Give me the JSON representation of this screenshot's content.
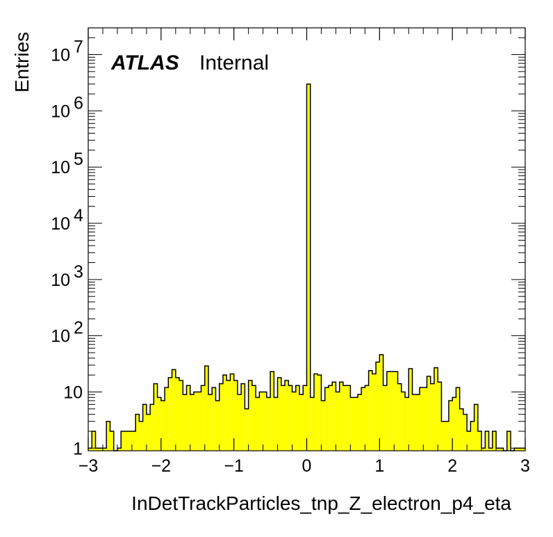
{
  "chart_data": {
    "type": "histogram",
    "ylabel": "Entries",
    "xlabel": "InDetTrackParticles_tnp_Z_electron_p4_eta",
    "x_range": [
      -3,
      3
    ],
    "y_scale": "log",
    "y_range": [
      0.9,
      30000000
    ],
    "x_ticks": [
      {
        "value": -3,
        "label": "−3"
      },
      {
        "value": -2,
        "label": "−2"
      },
      {
        "value": -1,
        "label": "−1"
      },
      {
        "value": 0,
        "label": "0"
      },
      {
        "value": 1,
        "label": "1"
      },
      {
        "value": 2,
        "label": "2"
      },
      {
        "value": 3,
        "label": "3"
      }
    ],
    "y_ticks": [
      {
        "value": 1,
        "base": "1",
        "exp": ""
      },
      {
        "value": 10,
        "base": "10",
        "exp": ""
      },
      {
        "value": 100,
        "base": "10",
        "exp": "2"
      },
      {
        "value": 1000,
        "base": "10",
        "exp": "3"
      },
      {
        "value": 10000,
        "base": "10",
        "exp": "4"
      },
      {
        "value": 100000,
        "base": "10",
        "exp": "5"
      },
      {
        "value": 1000000,
        "base": "10",
        "exp": "6"
      },
      {
        "value": 10000000,
        "base": "10",
        "exp": "7"
      }
    ],
    "bin_width": 0.05,
    "bins": [
      {
        "x": -3.0,
        "y": 1
      },
      {
        "x": -2.95,
        "y": 2
      },
      {
        "x": -2.9,
        "y": 1
      },
      {
        "x": -2.85,
        "y": 1
      },
      {
        "x": -2.8,
        "y": 1
      },
      {
        "x": -2.75,
        "y": 3
      },
      {
        "x": -2.7,
        "y": 2
      },
      {
        "x": -2.65,
        "y": 0
      },
      {
        "x": -2.6,
        "y": 1
      },
      {
        "x": -2.55,
        "y": 2
      },
      {
        "x": -2.5,
        "y": 2
      },
      {
        "x": -2.45,
        "y": 2
      },
      {
        "x": -2.4,
        "y": 2
      },
      {
        "x": -2.35,
        "y": 4
      },
      {
        "x": -2.3,
        "y": 3
      },
      {
        "x": -2.25,
        "y": 6
      },
      {
        "x": -2.2,
        "y": 4
      },
      {
        "x": -2.15,
        "y": 6
      },
      {
        "x": -2.1,
        "y": 14
      },
      {
        "x": -2.05,
        "y": 8
      },
      {
        "x": -2.0,
        "y": 7
      },
      {
        "x": -1.95,
        "y": 12
      },
      {
        "x": -1.9,
        "y": 18
      },
      {
        "x": -1.85,
        "y": 25
      },
      {
        "x": -1.8,
        "y": 18
      },
      {
        "x": -1.75,
        "y": 16
      },
      {
        "x": -1.7,
        "y": 9
      },
      {
        "x": -1.65,
        "y": 13
      },
      {
        "x": -1.6,
        "y": 9
      },
      {
        "x": -1.55,
        "y": 10
      },
      {
        "x": -1.5,
        "y": 10
      },
      {
        "x": -1.45,
        "y": 13
      },
      {
        "x": -1.4,
        "y": 29
      },
      {
        "x": -1.35,
        "y": 9
      },
      {
        "x": -1.3,
        "y": 12
      },
      {
        "x": -1.25,
        "y": 7
      },
      {
        "x": -1.2,
        "y": 14
      },
      {
        "x": -1.15,
        "y": 20
      },
      {
        "x": -1.1,
        "y": 16
      },
      {
        "x": -1.05,
        "y": 21
      },
      {
        "x": -1.0,
        "y": 16
      },
      {
        "x": -0.95,
        "y": 9
      },
      {
        "x": -0.9,
        "y": 14
      },
      {
        "x": -0.85,
        "y": 5
      },
      {
        "x": -0.8,
        "y": 16
      },
      {
        "x": -0.75,
        "y": 13
      },
      {
        "x": -0.7,
        "y": 8
      },
      {
        "x": -0.65,
        "y": 10
      },
      {
        "x": -0.6,
        "y": 10
      },
      {
        "x": -0.55,
        "y": 8
      },
      {
        "x": -0.5,
        "y": 23
      },
      {
        "x": -0.45,
        "y": 8
      },
      {
        "x": -0.4,
        "y": 18
      },
      {
        "x": -0.35,
        "y": 13
      },
      {
        "x": -0.3,
        "y": 16
      },
      {
        "x": -0.25,
        "y": 13
      },
      {
        "x": -0.2,
        "y": 10
      },
      {
        "x": -0.15,
        "y": 13
      },
      {
        "x": -0.1,
        "y": 9
      },
      {
        "x": -0.05,
        "y": 13
      },
      {
        "x": 0.0,
        "y": 3000000
      },
      {
        "x": 0.05,
        "y": 8
      },
      {
        "x": 0.1,
        "y": 21
      },
      {
        "x": 0.15,
        "y": 20
      },
      {
        "x": 0.2,
        "y": 7
      },
      {
        "x": 0.25,
        "y": 12
      },
      {
        "x": 0.3,
        "y": 13
      },
      {
        "x": 0.35,
        "y": 15
      },
      {
        "x": 0.4,
        "y": 10
      },
      {
        "x": 0.45,
        "y": 15
      },
      {
        "x": 0.5,
        "y": 13
      },
      {
        "x": 0.55,
        "y": 13
      },
      {
        "x": 0.6,
        "y": 8
      },
      {
        "x": 0.65,
        "y": 8
      },
      {
        "x": 0.7,
        "y": 9
      },
      {
        "x": 0.75,
        "y": 12
      },
      {
        "x": 0.8,
        "y": 13
      },
      {
        "x": 0.85,
        "y": 24
      },
      {
        "x": 0.9,
        "y": 21
      },
      {
        "x": 0.95,
        "y": 34
      },
      {
        "x": 1.0,
        "y": 46
      },
      {
        "x": 1.05,
        "y": 13
      },
      {
        "x": 1.1,
        "y": 23
      },
      {
        "x": 1.15,
        "y": 23
      },
      {
        "x": 1.2,
        "y": 23
      },
      {
        "x": 1.25,
        "y": 14
      },
      {
        "x": 1.3,
        "y": 10
      },
      {
        "x": 1.35,
        "y": 8
      },
      {
        "x": 1.4,
        "y": 26
      },
      {
        "x": 1.45,
        "y": 9
      },
      {
        "x": 1.5,
        "y": 9
      },
      {
        "x": 1.55,
        "y": 12
      },
      {
        "x": 1.6,
        "y": 12
      },
      {
        "x": 1.65,
        "y": 19
      },
      {
        "x": 1.7,
        "y": 14
      },
      {
        "x": 1.75,
        "y": 27
      },
      {
        "x": 1.8,
        "y": 15
      },
      {
        "x": 1.85,
        "y": 3
      },
      {
        "x": 1.9,
        "y": 3
      },
      {
        "x": 1.95,
        "y": 7
      },
      {
        "x": 2.0,
        "y": 8
      },
      {
        "x": 2.05,
        "y": 12
      },
      {
        "x": 2.1,
        "y": 5
      },
      {
        "x": 2.15,
        "y": 4
      },
      {
        "x": 2.2,
        "y": 2
      },
      {
        "x": 2.25,
        "y": 3
      },
      {
        "x": 2.3,
        "y": 6
      },
      {
        "x": 2.35,
        "y": 2
      },
      {
        "x": 2.4,
        "y": 1
      },
      {
        "x": 2.45,
        "y": 2
      },
      {
        "x": 2.5,
        "y": 1
      },
      {
        "x": 2.55,
        "y": 2
      },
      {
        "x": 2.6,
        "y": 1
      },
      {
        "x": 2.65,
        "y": 1
      },
      {
        "x": 2.7,
        "y": 0
      },
      {
        "x": 2.75,
        "y": 2
      },
      {
        "x": 2.8,
        "y": 0
      },
      {
        "x": 2.85,
        "y": 1
      },
      {
        "x": 2.9,
        "y": 1
      },
      {
        "x": 2.95,
        "y": 1
      }
    ],
    "fill_color": "#ffff00",
    "line_color": "#000000",
    "label": {
      "bold": "ATLAS",
      "normal": "Internal"
    },
    "grid": false
  }
}
